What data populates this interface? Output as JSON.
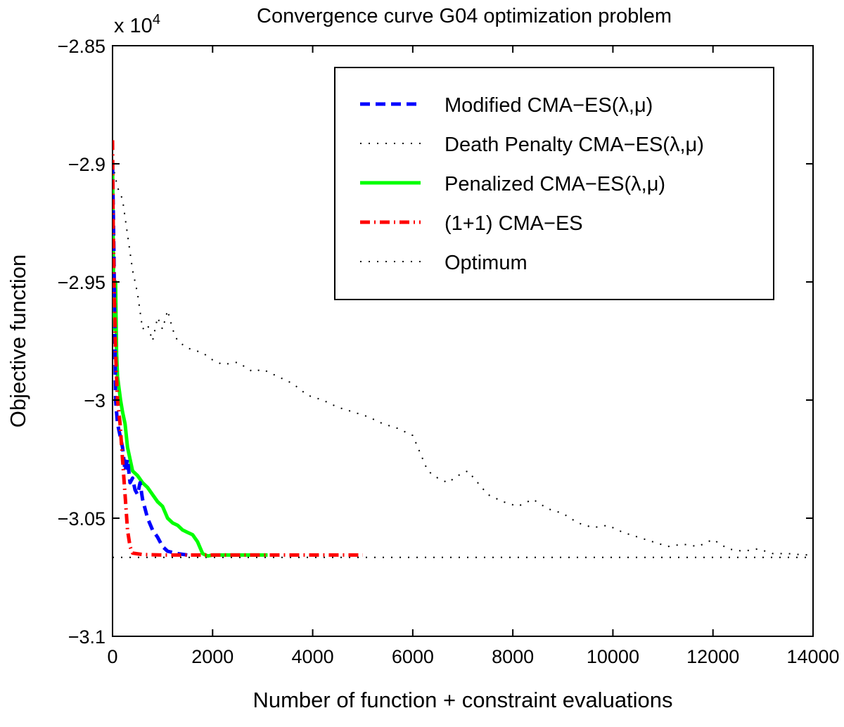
{
  "chart_data": {
    "type": "line",
    "title": "Convergence curve G04 optimization problem",
    "xlabel": "Number of function + constraint evaluations",
    "ylabel": "Objective function",
    "y_multiplier_label": "x 10",
    "y_multiplier_exponent": "4",
    "xlim": [
      0,
      14000
    ],
    "ylim": [
      -3.1,
      -2.85
    ],
    "x_ticks": [
      0,
      2000,
      4000,
      6000,
      8000,
      10000,
      12000,
      14000
    ],
    "x_tick_labels": [
      "0",
      "2000",
      "4000",
      "6000",
      "8000",
      "10000",
      "12000",
      "14000"
    ],
    "y_ticks": [
      -2.85,
      -2.9,
      -2.95,
      -3.0,
      -3.05,
      -3.1
    ],
    "y_tick_labels": [
      "−2.85",
      "−2.9",
      "−2.95",
      "−3",
      "−3.05",
      "−3.1"
    ],
    "grid": false,
    "legend_position": "top-right",
    "series": [
      {
        "name": "Modified CMA−ES(λ,μ)",
        "color": "#0000ff",
        "style": "dashed",
        "x": [
          0,
          30,
          60,
          100,
          150,
          200,
          250,
          300,
          350,
          400,
          450,
          500,
          550,
          600,
          700,
          800,
          900,
          1000,
          1100,
          1300,
          1500
        ],
        "y": [
          -2.9,
          -2.94,
          -3.0,
          -3.01,
          -3.015,
          -3.02,
          -3.03,
          -3.025,
          -3.035,
          -3.033,
          -3.038,
          -3.04,
          -3.035,
          -3.042,
          -3.05,
          -3.055,
          -3.058,
          -3.062,
          -3.064,
          -3.065,
          -3.0656
        ]
      },
      {
        "name": "Death Penalty CMA−ES(λ,μ)",
        "color": "#000000",
        "style": "dotted",
        "x": [
          0,
          100,
          200,
          300,
          400,
          500,
          600,
          700,
          800,
          900,
          1000,
          1100,
          1200,
          1300,
          1500,
          1800,
          2000,
          2200,
          2500,
          2800,
          3000,
          3300,
          3600,
          3900,
          4200,
          4500,
          4800,
          5100,
          5400,
          5700,
          6000,
          6300,
          6500,
          6700,
          6900,
          7100,
          7300,
          7500,
          7800,
          8100,
          8400,
          8700,
          9000,
          9300,
          9600,
          9900,
          10200,
          10500,
          10800,
          11100,
          11400,
          11700,
          12000,
          12300,
          12600,
          12900,
          13200,
          13500,
          13800,
          14000
        ],
        "y": [
          -2.9,
          -2.91,
          -2.915,
          -2.93,
          -2.945,
          -2.955,
          -2.97,
          -2.968,
          -2.975,
          -2.965,
          -2.97,
          -2.962,
          -2.97,
          -2.975,
          -2.978,
          -2.98,
          -2.983,
          -2.985,
          -2.984,
          -2.988,
          -2.987,
          -2.99,
          -2.993,
          -2.998,
          -3.0,
          -3.003,
          -3.005,
          -3.007,
          -3.01,
          -3.012,
          -3.015,
          -3.03,
          -3.033,
          -3.035,
          -3.032,
          -3.03,
          -3.035,
          -3.04,
          -3.043,
          -3.045,
          -3.042,
          -3.046,
          -3.048,
          -3.052,
          -3.054,
          -3.053,
          -3.056,
          -3.058,
          -3.06,
          -3.062,
          -3.061,
          -3.062,
          -3.059,
          -3.063,
          -3.064,
          -3.063,
          -3.065,
          -3.065,
          -3.0655,
          -3.0656
        ]
      },
      {
        "name": "Penalized CMA−ES(λ,μ)",
        "color": "#00ff00",
        "style": "solid",
        "x": [
          0,
          20,
          40,
          60,
          80,
          100,
          130,
          160,
          200,
          250,
          300,
          350,
          400,
          500,
          600,
          700,
          800,
          900,
          1000,
          1100,
          1200,
          1300,
          1400,
          1500,
          1600,
          1700,
          1800,
          1900,
          2000,
          2500,
          3000,
          3100
        ],
        "y": [
          -2.9,
          -2.95,
          -2.97,
          -2.95,
          -2.98,
          -2.99,
          -2.995,
          -3.0,
          -3.005,
          -3.01,
          -3.02,
          -3.025,
          -3.03,
          -3.032,
          -3.035,
          -3.037,
          -3.04,
          -3.043,
          -3.045,
          -3.05,
          -3.052,
          -3.053,
          -3.055,
          -3.056,
          -3.057,
          -3.06,
          -3.065,
          -3.066,
          -3.0656,
          -3.0656,
          -3.0656,
          -3.0656
        ]
      },
      {
        "name": "(1+1) CMA−ES",
        "color": "#ff0000",
        "style": "dashdot",
        "x": [
          0,
          10,
          30,
          60,
          100,
          150,
          200,
          250,
          300,
          350,
          400,
          600,
          1000,
          2000,
          3000,
          4000,
          5000
        ],
        "y": [
          -2.89,
          -2.92,
          -2.95,
          -2.98,
          -3.0,
          -3.01,
          -3.025,
          -3.04,
          -3.055,
          -3.062,
          -3.0648,
          -3.0654,
          -3.0656,
          -3.0656,
          -3.0656,
          -3.0656,
          -3.0656
        ]
      },
      {
        "name": "Optimum",
        "color": "#000000",
        "style": "dotted",
        "x": [
          0,
          14000
        ],
        "y": [
          -3.0666,
          -3.0666
        ]
      }
    ]
  }
}
